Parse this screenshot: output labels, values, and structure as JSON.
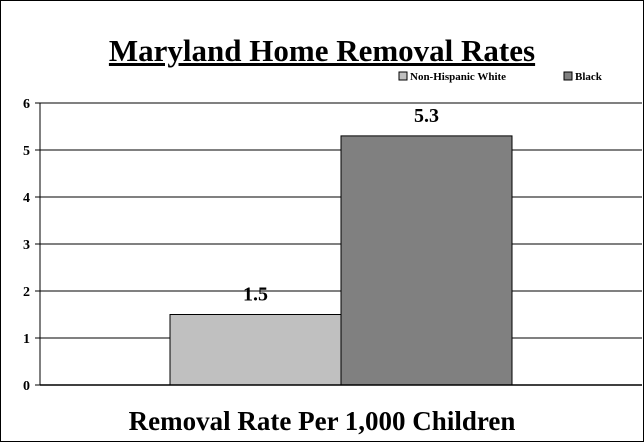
{
  "chart_data": {
    "type": "bar",
    "title": "Maryland Home Removal Rates",
    "xlabel": "Removal Rate Per 1,000 Children",
    "ylabel": "",
    "ylim": [
      0,
      6
    ],
    "yticks": [
      "0",
      "1",
      "2",
      "3",
      "4",
      "5",
      "6"
    ],
    "grid": true,
    "legend_position": "top-right",
    "series": [
      {
        "name": "Non-Hispanic White",
        "values": [
          1.5
        ],
        "label": "1.5",
        "color": "#c0c0c0"
      },
      {
        "name": "Black",
        "values": [
          5.3
        ],
        "label": "5.3",
        "color": "#808080"
      }
    ]
  }
}
